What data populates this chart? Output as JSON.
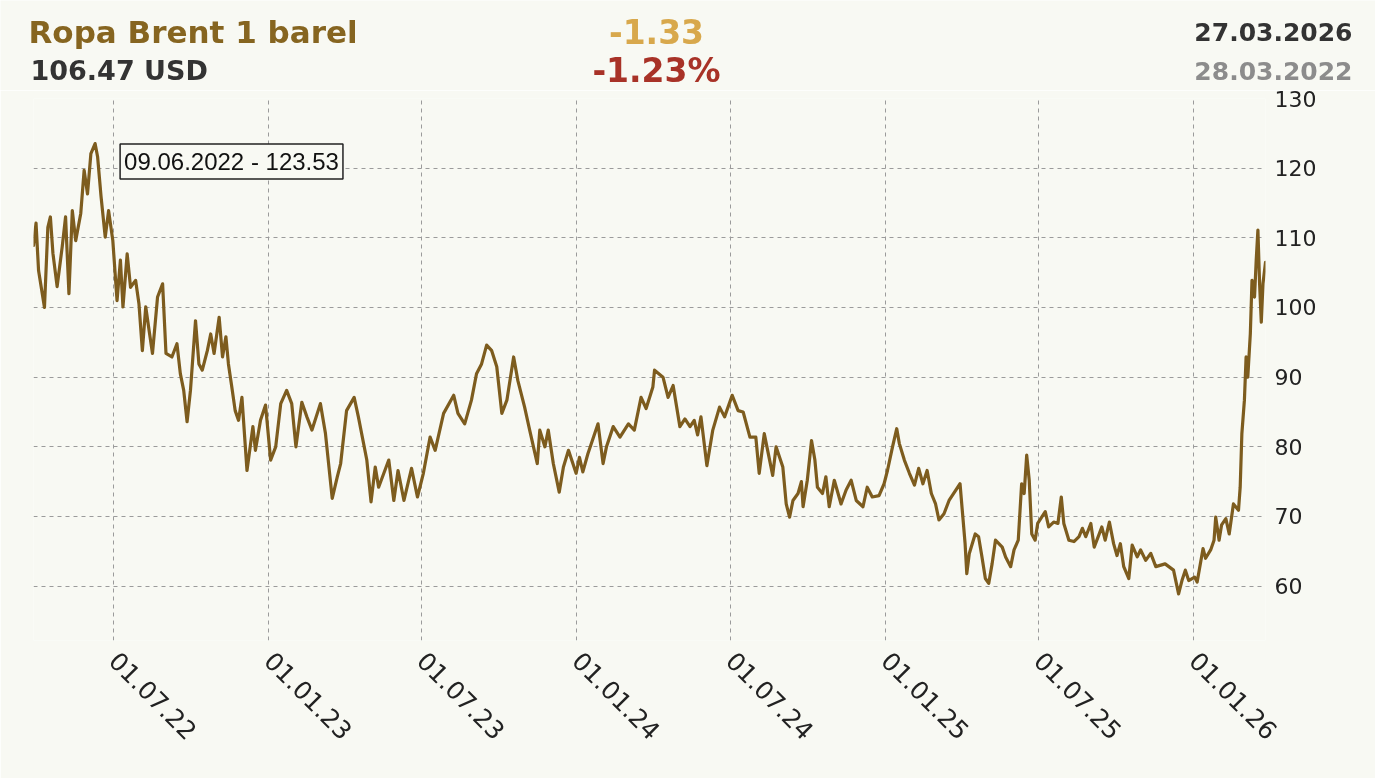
{
  "chart_data": {
    "type": "line",
    "title": "Ropa Brent 1 barel",
    "subtitle": "106.47 USD",
    "annotations": [
      "-1.33",
      "-1.23%",
      "27.03.2026",
      "28.03.2022",
      {
        "text": "09.06.2022 - 123.53",
        "x": "2022-06-09",
        "y": 123.53
      }
    ],
    "color": "#7d5c1e",
    "grid": true,
    "xlim": [
      "2022-03-28",
      "2026-03-27"
    ],
    "xticks": [
      {
        "value": "2022-07-01",
        "label": "01.07.22"
      },
      {
        "value": "2023-01-01",
        "label": "01.01.23"
      },
      {
        "value": "2023-07-01",
        "label": "01.07.23"
      },
      {
        "value": "2024-01-01",
        "label": "01.01.24"
      },
      {
        "value": "2024-07-01",
        "label": "01.07.24"
      },
      {
        "value": "2025-01-01",
        "label": "01.01.25"
      },
      {
        "value": "2025-07-01",
        "label": "01.07.25"
      },
      {
        "value": "2026-01-01",
        "label": "01.01.26"
      }
    ],
    "ylim": [
      52.2,
      130
    ],
    "yticks": [
      60,
      70,
      80,
      90,
      100,
      110,
      120,
      130
    ],
    "x": [
      "2022-03-28",
      "2022-03-31",
      "2022-04-03",
      "2022-04-10",
      "2022-04-14",
      "2022-04-17",
      "2022-04-20",
      "2022-04-25",
      "2022-05-01",
      "2022-05-05",
      "2022-05-09",
      "2022-05-13",
      "2022-05-17",
      "2022-05-23",
      "2022-05-27",
      "2022-05-31",
      "2022-06-04",
      "2022-06-09",
      "2022-06-12",
      "2022-06-16",
      "2022-06-21",
      "2022-06-25",
      "2022-06-30",
      "2022-07-05",
      "2022-07-09",
      "2022-07-12",
      "2022-07-17",
      "2022-07-21",
      "2022-07-27",
      "2022-07-31",
      "2022-08-04",
      "2022-08-08",
      "2022-08-12",
      "2022-08-16",
      "2022-08-22",
      "2022-08-28",
      "2022-09-01",
      "2022-09-08",
      "2022-09-14",
      "2022-09-18",
      "2022-09-22",
      "2022-09-26",
      "2022-09-30",
      "2022-10-06",
      "2022-10-10",
      "2022-10-14",
      "2022-10-20",
      "2022-10-24",
      "2022-10-28",
      "2022-11-03",
      "2022-11-07",
      "2022-11-11",
      "2022-11-14",
      "2022-11-18",
      "2022-11-22",
      "2022-11-26",
      "2022-11-30",
      "2022-12-06",
      "2022-12-13",
      "2022-12-16",
      "2022-12-22",
      "2022-12-28",
      "2023-01-03",
      "2023-01-09",
      "2023-01-15",
      "2023-01-22",
      "2023-01-28",
      "2023-02-02",
      "2023-02-09",
      "2023-02-15",
      "2023-02-21",
      "2023-03-03",
      "2023-03-09",
      "2023-03-17",
      "2023-03-23",
      "2023-03-27",
      "2023-04-03",
      "2023-04-12",
      "2023-04-17",
      "2023-04-27",
      "2023-05-02",
      "2023-05-07",
      "2023-05-11",
      "2023-05-23",
      "2023-05-29",
      "2023-06-03",
      "2023-06-10",
      "2023-06-19",
      "2023-06-26",
      "2023-07-03",
      "2023-07-11",
      "2023-07-17",
      "2023-07-27",
      "2023-08-08",
      "2023-08-13",
      "2023-08-21",
      "2023-08-29",
      "2023-09-04",
      "2023-09-10",
      "2023-09-16",
      "2023-09-22",
      "2023-09-28",
      "2023-10-04",
      "2023-10-10",
      "2023-10-18",
      "2023-10-23",
      "2023-10-31",
      "2023-11-06",
      "2023-11-15",
      "2023-11-18",
      "2023-11-24",
      "2023-11-28",
      "2023-12-04",
      "2023-12-11",
      "2023-12-16",
      "2023-12-22",
      "2023-12-31",
      "2024-01-04",
      "2024-01-08",
      "2024-01-14",
      "2024-01-26",
      "2024-02-01",
      "2024-02-05",
      "2024-02-13",
      "2024-02-21",
      "2024-03-02",
      "2024-03-09",
      "2024-03-17",
      "2024-03-23",
      "2024-03-31",
      "2024-04-02",
      "2024-04-12",
      "2024-04-18",
      "2024-04-24",
      "2024-05-02",
      "2024-05-08",
      "2024-05-14",
      "2024-05-19",
      "2024-05-23",
      "2024-05-27",
      "2024-06-03",
      "2024-06-10",
      "2024-06-18",
      "2024-06-24",
      "2024-07-03",
      "2024-07-10",
      "2024-07-16",
      "2024-07-24",
      "2024-07-31",
      "2024-08-04",
      "2024-08-10",
      "2024-08-14",
      "2024-08-20",
      "2024-08-24",
      "2024-09-01",
      "2024-09-05",
      "2024-09-09",
      "2024-09-13",
      "2024-09-19",
      "2024-09-23",
      "2024-09-25",
      "2024-09-30",
      "2024-10-05",
      "2024-10-09",
      "2024-10-12",
      "2024-10-18",
      "2024-10-22",
      "2024-10-26",
      "2024-11-01",
      "2024-11-09",
      "2024-11-15",
      "2024-11-21",
      "2024-11-27",
      "2024-12-05",
      "2024-12-10",
      "2024-12-16",
      "2024-12-24",
      "2024-12-30",
      "2025-01-03",
      "2025-01-09",
      "2025-01-14",
      "2025-01-17",
      "2025-01-23",
      "2025-01-29",
      "2025-02-04",
      "2025-02-09",
      "2025-02-14",
      "2025-02-19",
      "2025-02-24",
      "2025-03-01",
      "2025-03-05",
      "2025-03-11",
      "2025-03-17",
      "2025-03-25",
      "2025-03-30",
      "2025-04-02",
      "2025-04-05",
      "2025-04-07",
      "2025-04-10",
      "2025-04-17",
      "2025-04-21",
      "2025-04-25",
      "2025-04-29",
      "2025-05-03",
      "2025-05-07",
      "2025-05-11",
      "2025-05-19",
      "2025-05-23",
      "2025-05-29",
      "2025-06-02",
      "2025-06-07",
      "2025-06-11",
      "2025-06-14",
      "2025-06-17",
      "2025-06-20",
      "2025-06-23",
      "2025-06-27",
      "2025-06-30",
      "2025-07-09",
      "2025-07-13",
      "2025-07-19",
      "2025-07-24",
      "2025-07-28",
      "2025-07-31",
      "2025-08-06",
      "2025-08-12",
      "2025-08-18",
      "2025-08-22",
      "2025-08-26",
      "2025-09-01",
      "2025-09-05",
      "2025-09-11",
      "2025-09-14",
      "2025-09-18",
      "2025-09-23",
      "2025-09-28",
      "2025-10-02",
      "2025-10-06",
      "2025-10-10",
      "2025-10-16",
      "2025-10-20",
      "2025-10-26",
      "2025-10-30",
      "2025-11-05",
      "2025-11-11",
      "2025-11-17",
      "2025-11-28",
      "2025-12-08",
      "2025-12-14",
      "2025-12-18",
      "2025-12-22",
      "2025-12-26",
      "2026-01-02",
      "2026-01-05",
      "2026-01-12",
      "2026-01-15",
      "2026-01-21",
      "2026-01-25",
      "2026-01-27",
      "2026-01-31",
      "2026-02-03",
      "2026-02-08",
      "2026-02-12",
      "2026-02-17",
      "2026-02-23",
      "2026-02-25",
      "2026-02-27",
      "2026-03-02",
      "2026-03-04",
      "2026-03-06",
      "2026-03-09",
      "2026-03-11",
      "2026-03-14",
      "2026-03-16",
      "2026-03-18",
      "2026-03-20",
      "2026-03-22",
      "2026-03-24",
      "2026-03-27"
    ],
    "values": [
      108.9,
      112.1,
      105.3,
      100.0,
      111.5,
      113.0,
      107.8,
      103.0,
      108.7,
      113.0,
      102.0,
      113.9,
      109.6,
      113.5,
      119.7,
      116.3,
      122.1,
      123.53,
      121.6,
      116.0,
      110.1,
      113.9,
      109.6,
      101.0,
      106.8,
      100.1,
      107.7,
      102.9,
      103.9,
      100.5,
      93.8,
      100.1,
      96.7,
      93.4,
      101.5,
      103.4,
      93.4,
      92.9,
      94.8,
      90.5,
      88.1,
      83.6,
      88.1,
      98.1,
      91.9,
      91.0,
      93.8,
      96.2,
      93.4,
      98.6,
      92.9,
      95.8,
      91.9,
      88.6,
      85.2,
      83.8,
      87.1,
      76.6,
      82.9,
      79.5,
      83.8,
      86.0,
      78.1,
      80.0,
      86.2,
      88.1,
      86.2,
      80.0,
      86.4,
      84.3,
      82.4,
      86.2,
      81.9,
      72.6,
      75.7,
      77.6,
      85.2,
      87.1,
      84.3,
      78.1,
      72.1,
      77.1,
      74.2,
      78.1,
      72.3,
      76.6,
      72.3,
      76.9,
      72.8,
      76.2,
      81.4,
      79.5,
      84.8,
      87.4,
      84.8,
      83.3,
      86.7,
      90.5,
      91.9,
      94.6,
      93.8,
      91.5,
      84.8,
      86.7,
      92.9,
      89.5,
      85.7,
      82.4,
      77.6,
      82.4,
      80.0,
      82.4,
      77.6,
      73.5,
      77.1,
      79.5,
      76.2,
      78.5,
      76.4,
      79.0,
      83.3,
      77.6,
      80.0,
      82.9,
      81.4,
      83.3,
      82.4,
      87.1,
      85.5,
      88.6,
      91.0,
      90.0,
      87.1,
      88.8,
      82.9,
      84.0,
      82.9,
      83.8,
      81.7,
      84.3,
      77.3,
      82.4,
      85.7,
      84.3,
      87.4,
      85.2,
      85.0,
      81.4,
      81.4,
      76.2,
      81.9,
      79.5,
      75.9,
      80.0,
      77.1,
      71.8,
      69.9,
      72.3,
      73.3,
      75.0,
      71.4,
      75.2,
      80.9,
      78.1,
      74.2,
      73.3,
      75.7,
      71.4,
      75.2,
      71.8,
      73.8,
      75.2,
      72.3,
      71.4,
      74.2,
      72.8,
      73.0,
      74.7,
      76.6,
      80.0,
      82.6,
      80.5,
      78.1,
      76.2,
      74.5,
      76.9,
      74.7,
      76.6,
      73.3,
      71.8,
      69.5,
      70.4,
      72.3,
      73.8,
      74.7,
      70.4,
      66.1,
      61.8,
      64.7,
      67.5,
      67.1,
      64.2,
      61.1,
      60.4,
      63.2,
      66.6,
      65.6,
      64.2,
      62.8,
      65.2,
      66.6,
      74.7,
      73.3,
      78.8,
      75.2,
      67.5,
      66.6,
      69.0,
      70.7,
      68.5,
      69.2,
      69.0,
      72.8,
      69.0,
      66.6,
      66.4,
      67.1,
      68.3,
      67.1,
      69.0,
      65.6,
      67.5,
      68.5,
      66.6,
      69.2,
      66.1,
      64.4,
      66.1,
      62.8,
      61.1,
      65.9,
      64.2,
      65.2,
      63.7,
      64.7,
      62.8,
      63.2,
      62.3,
      58.9,
      60.8,
      62.3,
      60.8,
      61.3,
      60.6,
      65.4,
      64.0,
      65.2,
      66.6,
      69.9,
      66.6,
      68.8,
      69.7,
      67.5,
      71.8,
      70.9,
      74.2,
      81.9,
      86.7,
      92.9,
      90.0,
      96.2,
      103.9,
      101.5,
      106.8,
      111.1,
      103.4,
      97.9,
      103.4,
      106.47
    ]
  }
}
